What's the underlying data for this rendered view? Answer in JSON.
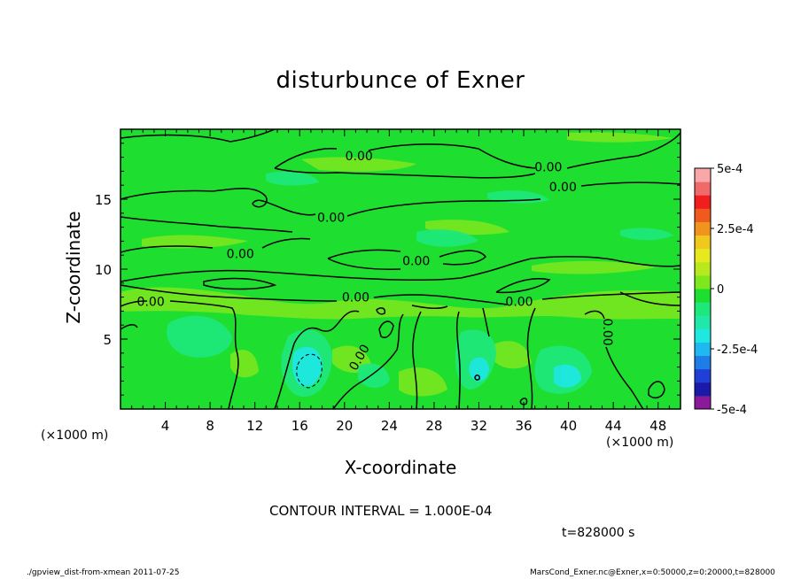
{
  "chart_data": {
    "type": "heatmap",
    "title": "disturbunce of Exner",
    "xlabel": "X-coordinate",
    "ylabel": "Z-coordinate",
    "x_unit": "(×1000 m)",
    "xlim": [
      0,
      50
    ],
    "ylim": [
      0,
      20
    ],
    "x_ticks": [
      4,
      8,
      12,
      16,
      20,
      24,
      28,
      32,
      36,
      40,
      44,
      48
    ],
    "y_ticks": [
      5,
      10,
      15
    ],
    "colorbar": {
      "range": [
        -0.0005,
        0.0005
      ],
      "tick_labels": [
        "5e-4",
        "2.5e-4",
        "0",
        "-2.5e-4",
        "-5e-4"
      ],
      "colors": [
        "#8a1a9a",
        "#1a1aa8",
        "#1f3fd6",
        "#1f7de8",
        "#1fb8f0",
        "#1fe8e0",
        "#1fe8a8",
        "#1ee87a",
        "#1ede2f",
        "#7ee81e",
        "#b8e81e",
        "#e8e81e",
        "#f0c81e",
        "#f0941e",
        "#f05a1e",
        "#f01e1e",
        "#f06a6a",
        "#f8a8a8"
      ]
    },
    "contour_labels": [
      {
        "text": "0.00",
        "x": 21.3,
        "z": 18.1
      },
      {
        "text": "0.00",
        "x": 38.2,
        "z": 17.3
      },
      {
        "text": "0.00",
        "x": 39.5,
        "z": 15.9
      },
      {
        "text": "0.00",
        "x": 18.8,
        "z": 13.7
      },
      {
        "text": "0.00",
        "x": 10.7,
        "z": 11.1
      },
      {
        "text": "0.00",
        "x": 26.4,
        "z": 10.6
      },
      {
        "text": "0.00",
        "x": 2.7,
        "z": 7.7
      },
      {
        "text": "0.00",
        "x": 21.0,
        "z": 8.0
      },
      {
        "text": "0.00",
        "x": 35.6,
        "z": 7.7
      },
      {
        "text": "0.00",
        "x": 43.5,
        "z": 5.5
      },
      {
        "text": "0.00",
        "x": 21.3,
        "z": 3.7
      }
    ],
    "grid": false
  },
  "contour_interval_text": "CONTOUR INTERVAL = 1.000E-04",
  "time_text": "t=828000 s",
  "footer_left": "./gpview_dist-from-xmean  2011-07-25",
  "footer_right": "MarsCond_Exner.nc@Exner,x=0:50000,z=0:20000,t=828000"
}
